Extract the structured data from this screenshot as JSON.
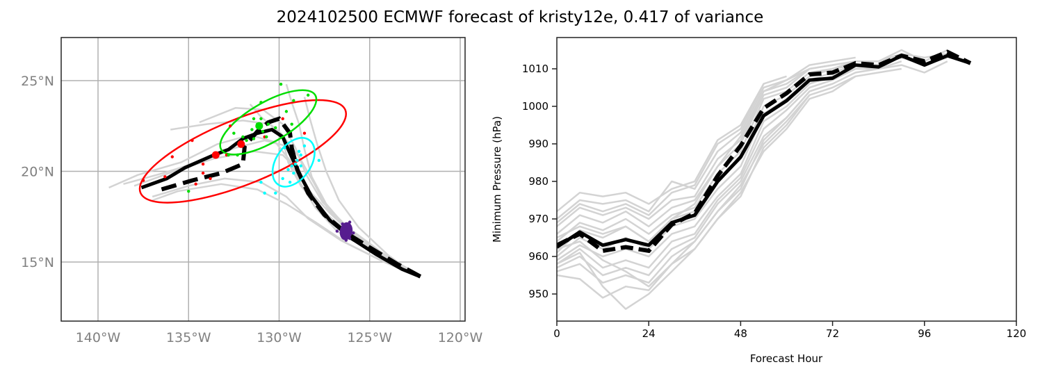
{
  "title": "2024102500 ECMWF forecast of kristy12e, 0.417 of variance",
  "colors": {
    "ensemble": "#d3d3d3",
    "mean": "#000000",
    "ellipse_red": "#ff0000",
    "ellipse_green": "#00dd00",
    "ellipse_cyan": "#00ffff",
    "ellipse_purple": "#561d8f",
    "grid": "#b0b0b0",
    "map_tick": "#808080"
  },
  "chart_data": [
    {
      "type": "line",
      "name": "track-map",
      "xlim": [
        -142,
        -120.2
      ],
      "ylim": [
        11.8,
        27.4
      ],
      "grid": true,
      "x_ticks": [
        {
          "value": -140,
          "label": "140°W"
        },
        {
          "value": -135,
          "label": "135°W"
        },
        {
          "value": -130,
          "label": "130°W"
        },
        {
          "value": -125,
          "label": "125°W"
        },
        {
          "value": -120,
          "label": "120°W"
        }
      ],
      "y_ticks": [
        {
          "value": 25,
          "label": "25°N"
        },
        {
          "value": 20,
          "label": "20°N"
        },
        {
          "value": 15,
          "label": "15°N"
        }
      ],
      "solid_track": [
        [
          -122.2,
          14.2
        ],
        [
          -123.2,
          14.6
        ],
        [
          -124.6,
          15.4
        ],
        [
          -126.0,
          16.3
        ],
        [
          -127.2,
          17.3
        ],
        [
          -128.2,
          18.6
        ],
        [
          -128.9,
          19.9
        ],
        [
          -129.4,
          21.0
        ],
        [
          -129.8,
          21.9
        ],
        [
          -130.4,
          22.3
        ],
        [
          -131.2,
          22.1
        ],
        [
          -132.0,
          21.8
        ],
        [
          -132.8,
          21.2
        ],
        [
          -133.6,
          20.9
        ],
        [
          -135.2,
          20.2
        ],
        [
          -136.2,
          19.6
        ],
        [
          -137.6,
          19.1
        ]
      ],
      "dashed_track": [
        [
          -122.2,
          14.2
        ],
        [
          -123.5,
          14.9
        ],
        [
          -125.0,
          15.8
        ],
        [
          -126.3,
          16.6
        ],
        [
          -127.5,
          17.6
        ],
        [
          -128.4,
          18.8
        ],
        [
          -129.0,
          20.1
        ],
        [
          -129.3,
          21.3
        ],
        [
          -129.4,
          22.1
        ],
        [
          -130.0,
          22.9
        ],
        [
          -130.6,
          22.7
        ],
        [
          -131.2,
          22.2
        ],
        [
          -131.9,
          21.4
        ],
        [
          -132.0,
          20.4
        ],
        [
          -133.2,
          19.9
        ],
        [
          -134.8,
          19.5
        ],
        [
          -136.5,
          19.0
        ]
      ],
      "ensemble_tracks": [
        [
          [
            -122.4,
            14.3
          ],
          [
            -124.2,
            15.3
          ],
          [
            -126.0,
            16.5
          ],
          [
            -127.6,
            17.8
          ],
          [
            -128.8,
            19.2
          ],
          [
            -129.5,
            20.5
          ],
          [
            -129.8,
            21.8
          ],
          [
            -130.5,
            22.6
          ],
          [
            -132.0,
            22.8
          ],
          [
            -134.0,
            22.6
          ],
          [
            -136.0,
            22.3
          ]
        ],
        [
          [
            -122.6,
            14.4
          ],
          [
            -124.4,
            15.5
          ],
          [
            -126.2,
            16.8
          ],
          [
            -127.4,
            18.2
          ],
          [
            -128.2,
            19.7
          ],
          [
            -128.6,
            21.2
          ],
          [
            -128.9,
            22.6
          ],
          [
            -129.3,
            23.8
          ],
          [
            -129.6,
            24.8
          ]
        ],
        [
          [
            -122.5,
            14.3
          ],
          [
            -124.0,
            15.4
          ],
          [
            -125.6,
            16.9
          ],
          [
            -126.7,
            18.4
          ],
          [
            -127.4,
            20.0
          ],
          [
            -127.9,
            21.5
          ],
          [
            -128.3,
            22.9
          ],
          [
            -128.6,
            24.1
          ]
        ],
        [
          [
            -122.4,
            14.2
          ],
          [
            -124.6,
            15.2
          ],
          [
            -126.6,
            16.2
          ],
          [
            -128.4,
            17.4
          ],
          [
            -129.6,
            18.6
          ],
          [
            -131.0,
            19.4
          ],
          [
            -133.0,
            19.6
          ],
          [
            -135.0,
            19.2
          ],
          [
            -137.0,
            18.6
          ]
        ],
        [
          [
            -122.5,
            14.3
          ],
          [
            -124.8,
            15.5
          ],
          [
            -126.8,
            16.7
          ],
          [
            -128.0,
            18.0
          ],
          [
            -128.8,
            19.3
          ],
          [
            -129.4,
            20.6
          ],
          [
            -130.2,
            21.6
          ],
          [
            -131.6,
            22.0
          ],
          [
            -133.4,
            21.5
          ],
          [
            -135.4,
            20.5
          ],
          [
            -137.8,
            19.8
          ],
          [
            -139.4,
            19.1
          ]
        ],
        [
          [
            -122.3,
            14.2
          ],
          [
            -124.2,
            15.0
          ],
          [
            -126.2,
            16.0
          ],
          [
            -128.0,
            17.2
          ],
          [
            -129.6,
            18.2
          ],
          [
            -131.2,
            19.0
          ],
          [
            -133.2,
            19.3
          ],
          [
            -135.6,
            18.9
          ],
          [
            -137.0,
            18.4
          ]
        ],
        [
          [
            -122.4,
            14.3
          ],
          [
            -124.4,
            15.4
          ],
          [
            -126.1,
            16.6
          ],
          [
            -127.3,
            17.9
          ],
          [
            -128.1,
            19.4
          ],
          [
            -128.9,
            20.8
          ],
          [
            -129.9,
            22.1
          ],
          [
            -131.0,
            23.0
          ],
          [
            -131.6,
            23.7
          ]
        ],
        [
          [
            -122.3,
            14.2
          ],
          [
            -124.0,
            15.2
          ],
          [
            -125.8,
            16.4
          ],
          [
            -127.2,
            17.7
          ],
          [
            -128.4,
            19.0
          ],
          [
            -129.0,
            20.3
          ],
          [
            -129.6,
            21.4
          ],
          [
            -130.8,
            21.7
          ],
          [
            -132.4,
            21.3
          ],
          [
            -134.2,
            20.6
          ],
          [
            -136.4,
            19.9
          ],
          [
            -138.6,
            19.3
          ]
        ],
        [
          [
            -122.5,
            14.4
          ],
          [
            -124.5,
            15.6
          ],
          [
            -126.4,
            16.8
          ],
          [
            -127.8,
            18.0
          ],
          [
            -128.6,
            19.3
          ],
          [
            -129.2,
            20.3
          ],
          [
            -129.8,
            20.9
          ],
          [
            -131.4,
            21.1
          ],
          [
            -133.6,
            20.7
          ],
          [
            -135.8,
            20.0
          ],
          [
            -138.0,
            19.2
          ]
        ],
        [
          [
            -122.4,
            14.3
          ],
          [
            -124.3,
            15.5
          ],
          [
            -126.2,
            16.9
          ],
          [
            -127.6,
            18.3
          ],
          [
            -128.5,
            19.8
          ],
          [
            -129.1,
            21.3
          ],
          [
            -129.8,
            22.6
          ],
          [
            -130.9,
            23.4
          ],
          [
            -132.4,
            23.5
          ],
          [
            -134.4,
            22.7
          ]
        ]
      ],
      "points": {
        "red": [
          [
            -135.9,
            20.8
          ],
          [
            -134.8,
            21.7
          ],
          [
            -134.2,
            20.4
          ],
          [
            -134.2,
            19.9
          ],
          [
            -133.8,
            19.6
          ],
          [
            -136.3,
            19.7
          ],
          [
            -132.7,
            22.5
          ],
          [
            -132.9,
            20.9
          ],
          [
            -130.8,
            21.9
          ],
          [
            -129.8,
            22.9
          ],
          [
            -128.6,
            22.1
          ],
          [
            -137.5,
            19.5
          ],
          [
            -134.6,
            19.3
          ]
        ],
        "red_big": [
          [
            -133.5,
            20.9
          ],
          [
            -132.1,
            21.5
          ]
        ],
        "green": [
          [
            -131.2,
            22.6
          ],
          [
            -131.5,
            22.3
          ],
          [
            -130.9,
            22.2
          ],
          [
            -130.7,
            21.9
          ],
          [
            -131.4,
            21.8
          ],
          [
            -132.0,
            21.9
          ],
          [
            -132.5,
            22.1
          ],
          [
            -131.0,
            22.9
          ],
          [
            -130.2,
            22.4
          ],
          [
            -129.6,
            23.3
          ],
          [
            -129.2,
            23.9
          ],
          [
            -128.4,
            24.2
          ],
          [
            -129.9,
            24.8
          ],
          [
            -131.0,
            23.8
          ],
          [
            -132.8,
            20.9
          ],
          [
            -132.3,
            20.9
          ],
          [
            -135.0,
            18.9
          ],
          [
            -130.6,
            22.6
          ],
          [
            -129.3,
            22.6
          ],
          [
            -131.8,
            21.7
          ],
          [
            -131.4,
            22.9
          ]
        ],
        "green_big": [
          [
            -131.1,
            22.5
          ]
        ],
        "cyan": [
          [
            -129.3,
            20.3
          ],
          [
            -129.0,
            20.6
          ],
          [
            -128.8,
            20.9
          ],
          [
            -129.5,
            20.1
          ],
          [
            -129.2,
            19.9
          ],
          [
            -128.9,
            21.1
          ],
          [
            -128.6,
            21.4
          ],
          [
            -129.7,
            21.3
          ],
          [
            -129.1,
            20.4
          ],
          [
            -128.8,
            20.3
          ],
          [
            -127.8,
            20.6
          ],
          [
            -131.0,
            19.4
          ],
          [
            -130.8,
            18.8
          ],
          [
            -130.2,
            18.8
          ],
          [
            -129.8,
            19.6
          ],
          [
            -129.4,
            19.4
          ]
        ],
        "purple": [
          [
            -126.3,
            16.9
          ],
          [
            -126.4,
            16.6
          ],
          [
            -126.2,
            16.5
          ],
          [
            -126.5,
            17.1
          ],
          [
            -126.1,
            17.2
          ],
          [
            -126.8,
            16.7
          ],
          [
            -125.9,
            16.6
          ],
          [
            -126.3,
            16.2
          ],
          [
            -126.1,
            16.3
          ]
        ]
      },
      "ellipses": [
        {
          "color": "red",
          "center": [
            -132.0,
            21.1
          ],
          "semi_major_deg": 6.1,
          "semi_minor_deg": 1.8,
          "angle_deg": 22
        },
        {
          "color": "green",
          "center": [
            -130.6,
            22.7
          ],
          "semi_major_deg": 3.0,
          "semi_minor_deg": 1.1,
          "angle_deg": 30
        },
        {
          "color": "cyan",
          "center": [
            -129.2,
            20.5
          ],
          "semi_major_deg": 1.5,
          "semi_minor_deg": 0.95,
          "angle_deg": 55
        },
        {
          "color": "purple",
          "center": [
            -126.3,
            16.7
          ],
          "semi_major_deg": 0.45,
          "semi_minor_deg": 0.3,
          "angle_deg": 80
        }
      ]
    },
    {
      "type": "line",
      "name": "pressure",
      "xlabel": "Forecast Hour",
      "ylabel": "Minimum Pressure (hPa)",
      "xlim": [
        0,
        120
      ],
      "ylim": [
        942.5,
        1018
      ],
      "x_ticks": [
        0,
        24,
        48,
        72,
        96,
        120
      ],
      "y_ticks": [
        950,
        960,
        970,
        980,
        990,
        1000,
        1010
      ],
      "x": [
        0,
        6,
        12,
        18,
        24,
        30,
        36,
        42,
        48,
        54,
        60,
        66,
        72,
        78,
        84,
        90,
        96,
        102,
        108
      ],
      "solid": [
        962.5,
        966.5,
        963,
        964.5,
        963,
        969,
        971,
        980,
        986.5,
        997.5,
        1001.5,
        1007,
        1007.5,
        1011,
        1010.5,
        1013.5,
        1011,
        1013.5,
        1011.5
      ],
      "dashed": [
        963,
        966,
        961.5,
        962.5,
        961.5,
        968.5,
        971.5,
        981.5,
        989.5,
        999.5,
        1003.5,
        1008.5,
        1009,
        1011.5,
        1011,
        1013.5,
        1012,
        1014.5,
        1011.5
      ],
      "ensemble": [
        [
          972,
          977,
          976,
          977,
          974,
          978,
          980,
          991,
          995,
          1006,
          1008
        ],
        [
          970,
          975,
          974,
          975,
          972,
          980,
          978,
          988,
          993,
          1005,
          1007,
          1011,
          1012,
          1013
        ],
        [
          968,
          973,
          971,
          973,
          970,
          975,
          976,
          986,
          991,
          1004,
          1006,
          1010,
          1011,
          1012,
          1012,
          1015,
          1012,
          1015
        ],
        [
          966,
          971,
          969,
          972,
          968,
          973,
          975,
          984,
          990,
          1003,
          1005,
          1010,
          1011,
          1012
        ],
        [
          964,
          969,
          967,
          970,
          966,
          971,
          973,
          982,
          988,
          1002,
          1004,
          1009,
          1010,
          1012,
          1012,
          1014,
          1013,
          1014
        ],
        [
          961,
          967,
          965,
          968,
          964,
          970,
          972,
          980,
          986,
          1000,
          1003,
          1008,
          1010,
          1011
        ],
        [
          960,
          965,
          962,
          965,
          962,
          968,
          970,
          978,
          984,
          998,
          1002,
          1007,
          1009,
          1011,
          1011,
          1013,
          1011,
          1013
        ],
        [
          959,
          963,
          960,
          962,
          960,
          966,
          968,
          976,
          982,
          996,
          1000,
          1006,
          1008,
          1010
        ],
        [
          958,
          962,
          957,
          959,
          957,
          964,
          966,
          975,
          981,
          994,
          999,
          1005,
          1007,
          1010,
          1010,
          1012
        ],
        [
          957,
          960,
          955,
          957,
          955,
          962,
          965,
          974,
          980,
          992,
          997,
          1004,
          1006,
          1009,
          1010,
          1011,
          1009,
          1012
        ],
        [
          956,
          958,
          953,
          955,
          953,
          960,
          964,
          972,
          979,
          990,
          996,
          1003,
          1005,
          1008
        ],
        [
          955,
          954,
          949,
          952,
          951,
          958,
          962,
          970,
          977,
          988,
          994,
          1002,
          1004,
          1008,
          1009,
          1010
        ],
        [
          958,
          961,
          952,
          946,
          950,
          956,
          962,
          970,
          976,
          989,
          995,
          1003
        ],
        [
          962,
          964,
          959,
          956,
          952,
          958,
          964,
          972,
          978,
          991,
          997,
          1004,
          1006
        ],
        [
          965,
          968,
          966,
          968,
          964,
          970,
          974,
          984,
          992,
          1004,
          1007,
          1010
        ],
        [
          969,
          974,
          972,
          974,
          971,
          977,
          979,
          990,
          994,
          1006
        ]
      ]
    }
  ]
}
